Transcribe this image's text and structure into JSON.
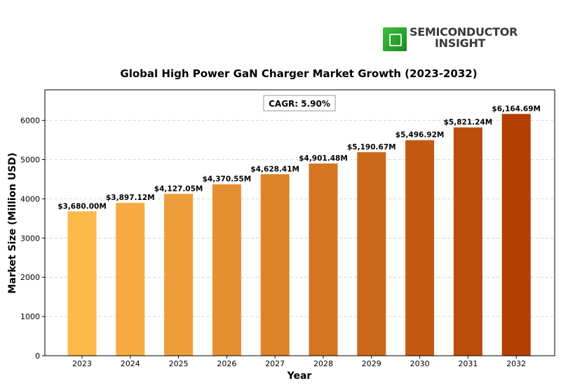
{
  "brand": {
    "line1": "SEMICONDUCTOR",
    "line2": "INSIGHT"
  },
  "colors": {
    "bar_start": "#FDB94A",
    "bar_end": "#B33F02",
    "grid": "#cccccc",
    "axis": "#000000"
  },
  "chart_data": {
    "type": "bar",
    "title": "Global High Power GaN Charger Market Growth (2023-2032)",
    "xlabel": "Year",
    "ylabel": "Market Size (Million USD)",
    "categories": [
      "2023",
      "2024",
      "2025",
      "2026",
      "2027",
      "2028",
      "2029",
      "2030",
      "2031",
      "2032"
    ],
    "values": [
      3680.0,
      3897.12,
      4127.05,
      4370.55,
      4628.41,
      4901.48,
      5190.67,
      5496.92,
      5821.24,
      6164.69
    ],
    "value_labels": [
      "$3,680.00M",
      "$3,897.12M",
      "$4,127.05M",
      "$4,370.55M",
      "$4,628.41M",
      "$4,901.48M",
      "$5,190.67M",
      "$5,496.92M",
      "$5,821.24M",
      "$6,164.69M"
    ],
    "yticks": [
      0,
      1000,
      2000,
      3000,
      4000,
      5000,
      6000
    ],
    "ylim": [
      0,
      6780
    ],
    "grid": "horizontal dashed",
    "annotation": "CAGR: 5.90%"
  }
}
